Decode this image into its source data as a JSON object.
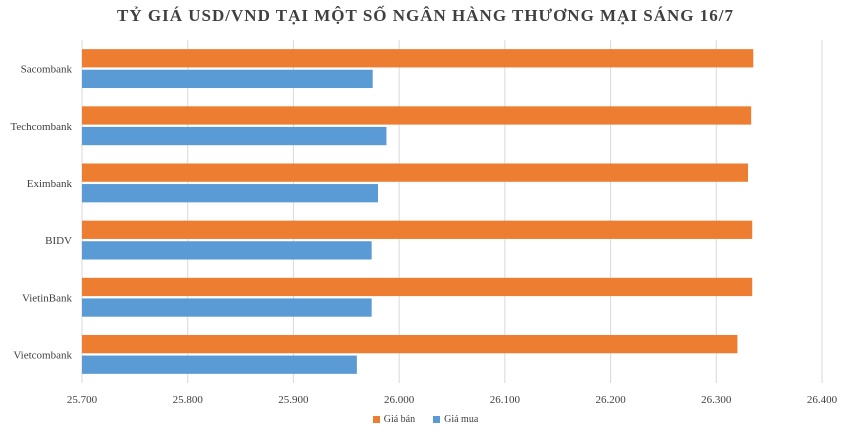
{
  "chart_data": {
    "type": "bar",
    "orientation": "horizontal",
    "title": "TỶ GIÁ USD/VND TẠI MỘT SỐ NGÂN HÀNG THƯƠNG MẠI SÁNG 16/7",
    "xlabel": "",
    "ylabel": "",
    "categories": [
      "Sacombank",
      "Techcombank",
      "Eximbank",
      "BIDV",
      "VietinBank",
      "Vietcombank"
    ],
    "series": [
      {
        "name": "Giá bán",
        "color": "#ED7D31",
        "values": [
          26335,
          26333,
          26330,
          26334,
          26334,
          26320
        ]
      },
      {
        "name": "Giá mua",
        "color": "#5B9BD5",
        "values": [
          25975,
          25988,
          25980,
          25974,
          25974,
          25960
        ]
      }
    ],
    "xlim": [
      25700,
      26400
    ],
    "xticks": [
      "25.700",
      "25.800",
      "25.900",
      "26.000",
      "26.100",
      "26.200",
      "26.300",
      "26.400"
    ],
    "grid": true,
    "legend_position": "bottom"
  }
}
